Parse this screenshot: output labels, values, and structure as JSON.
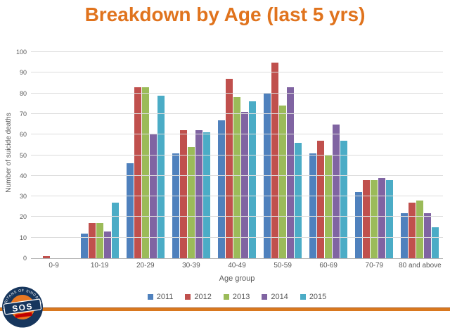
{
  "slide": {
    "title": "Breakdown by Age (last 5 yrs)",
    "title_color": "#e0731d",
    "background_color": "#ffffff"
  },
  "chart_data": {
    "type": "bar",
    "title": "",
    "xlabel": "Age group",
    "ylabel": "Number of suicide deaths",
    "ylim": [
      0,
      100
    ],
    "ytick_step": 10,
    "grid": "horizontal",
    "gridline_color": "#dcdcdc",
    "axis_text_color": "#595959",
    "legend_position": "bottom",
    "categories": [
      "0-9",
      "10-19",
      "20-29",
      "30-39",
      "40-49",
      "50-59",
      "60-69",
      "70-79",
      "80 and above"
    ],
    "series": [
      {
        "name": "2011",
        "color": "#4f81bd",
        "values": [
          0,
          12,
          46,
          51,
          67,
          80,
          51,
          32,
          22
        ]
      },
      {
        "name": "2012",
        "color": "#c0504d",
        "values": [
          1,
          17,
          83,
          62,
          87,
          95,
          57,
          38,
          27
        ]
      },
      {
        "name": "2013",
        "color": "#9bbb59",
        "values": [
          0,
          17,
          83,
          54,
          78,
          74,
          50,
          38,
          28
        ]
      },
      {
        "name": "2014",
        "color": "#8064a2",
        "values": [
          0,
          13,
          60,
          62,
          71,
          83,
          65,
          39,
          22
        ]
      },
      {
        "name": "2015",
        "color": "#4bacc6",
        "values": [
          0,
          27,
          79,
          61,
          76,
          56,
          57,
          38,
          15
        ]
      }
    ]
  },
  "footer": {
    "rule_color": "#d9781f",
    "logo": {
      "text": "SOS",
      "ring_text": "SAMARITANS OF SINGAPORE",
      "navy": "#17365d",
      "orange": "#e87722",
      "red": "#c00000"
    }
  }
}
